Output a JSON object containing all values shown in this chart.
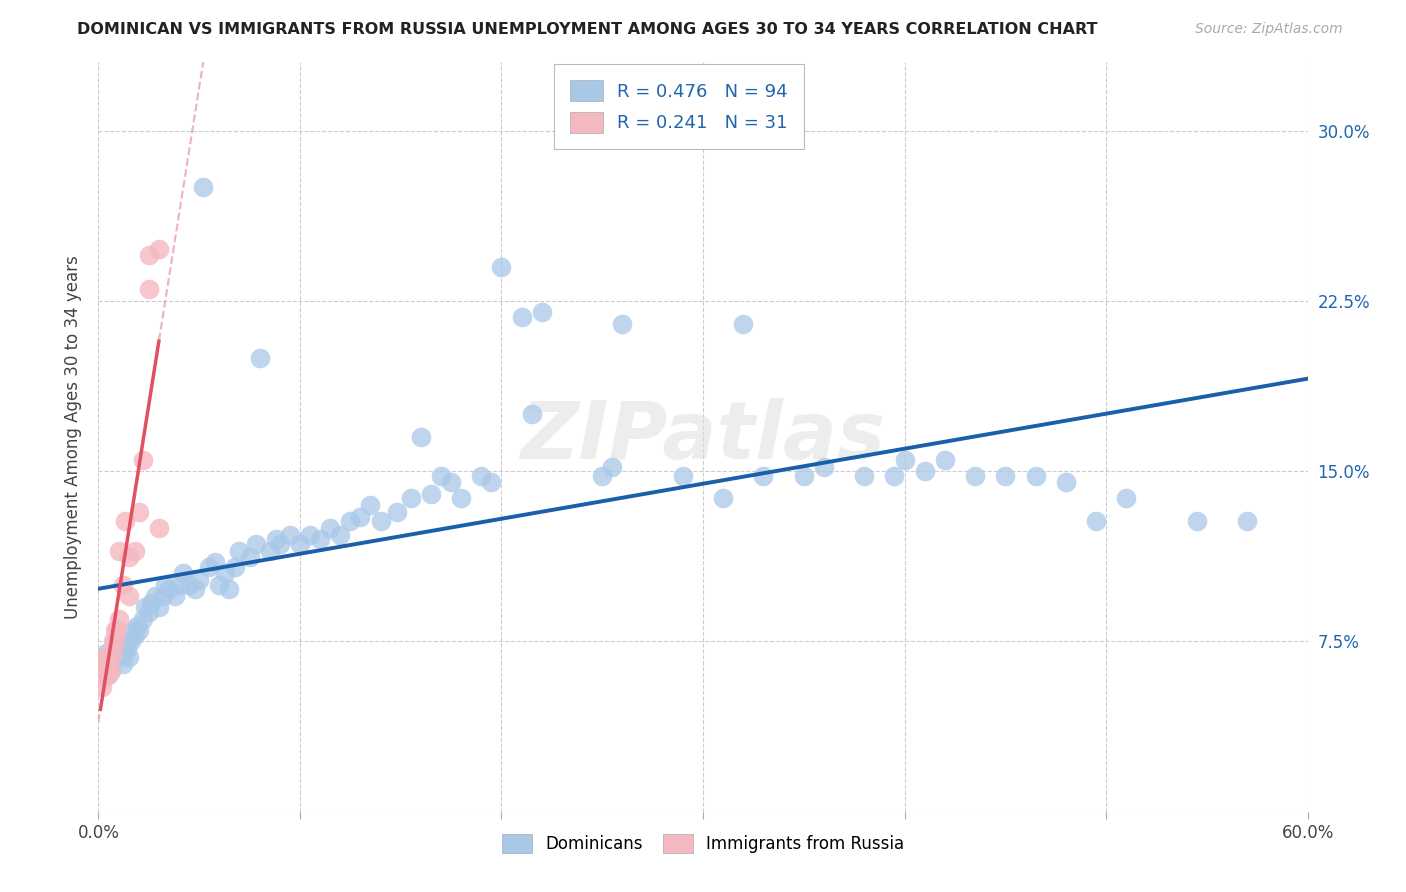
{
  "title": "DOMINICAN VS IMMIGRANTS FROM RUSSIA UNEMPLOYMENT AMONG AGES 30 TO 34 YEARS CORRELATION CHART",
  "source": "Source: ZipAtlas.com",
  "ylabel": "Unemployment Among Ages 30 to 34 years",
  "xlim": [
    0.0,
    0.6
  ],
  "ylim": [
    0.0,
    0.33
  ],
  "xtick_positions": [
    0.0,
    0.1,
    0.2,
    0.3,
    0.4,
    0.5,
    0.6
  ],
  "xticklabels": [
    "0.0%",
    "",
    "",
    "",
    "",
    "",
    "60.0%"
  ],
  "ytick_positions": [
    0.0,
    0.075,
    0.15,
    0.225,
    0.3
  ],
  "yticklabels_right": [
    "",
    "7.5%",
    "15.0%",
    "22.5%",
    "30.0%"
  ],
  "dominicans_R": 0.476,
  "dominicans_N": 94,
  "russia_R": 0.241,
  "russia_N": 31,
  "legend_label1": "Dominicans",
  "legend_label2": "Immigrants from Russia",
  "blue_color": "#a8c8e8",
  "pink_color": "#f4b8c0",
  "blue_line_color": "#1a5fa8",
  "pink_line_color": "#e05060",
  "pink_dash_color": "#e8a0a8",
  "watermark": "ZIPatlas",
  "dominicans_x": [
    0.002,
    0.003,
    0.004,
    0.005,
    0.005,
    0.006,
    0.007,
    0.008,
    0.009,
    0.01,
    0.011,
    0.012,
    0.013,
    0.014,
    0.015,
    0.016,
    0.017,
    0.018,
    0.019,
    0.02,
    0.022,
    0.023,
    0.025,
    0.026,
    0.028,
    0.03,
    0.032,
    0.033,
    0.035,
    0.038,
    0.04,
    0.042,
    0.045,
    0.048,
    0.05,
    0.052,
    0.055,
    0.058,
    0.06,
    0.063,
    0.065,
    0.068,
    0.07,
    0.075,
    0.078,
    0.08,
    0.085,
    0.088,
    0.09,
    0.095,
    0.1,
    0.105,
    0.11,
    0.115,
    0.12,
    0.125,
    0.13,
    0.135,
    0.14,
    0.148,
    0.155,
    0.16,
    0.165,
    0.17,
    0.175,
    0.18,
    0.19,
    0.195,
    0.2,
    0.21,
    0.215,
    0.22,
    0.25,
    0.255,
    0.26,
    0.29,
    0.31,
    0.32,
    0.33,
    0.35,
    0.36,
    0.38,
    0.395,
    0.4,
    0.41,
    0.42,
    0.435,
    0.45,
    0.465,
    0.48,
    0.495,
    0.51,
    0.545,
    0.57
  ],
  "dominicans_y": [
    0.065,
    0.068,
    0.07,
    0.06,
    0.065,
    0.063,
    0.068,
    0.07,
    0.072,
    0.075,
    0.068,
    0.065,
    0.07,
    0.072,
    0.068,
    0.075,
    0.08,
    0.078,
    0.082,
    0.08,
    0.085,
    0.09,
    0.088,
    0.092,
    0.095,
    0.09,
    0.095,
    0.1,
    0.098,
    0.095,
    0.1,
    0.105,
    0.1,
    0.098,
    0.102,
    0.275,
    0.108,
    0.11,
    0.1,
    0.105,
    0.098,
    0.108,
    0.115,
    0.112,
    0.118,
    0.2,
    0.115,
    0.12,
    0.118,
    0.122,
    0.118,
    0.122,
    0.12,
    0.125,
    0.122,
    0.128,
    0.13,
    0.135,
    0.128,
    0.132,
    0.138,
    0.165,
    0.14,
    0.148,
    0.145,
    0.138,
    0.148,
    0.145,
    0.24,
    0.218,
    0.175,
    0.22,
    0.148,
    0.152,
    0.215,
    0.148,
    0.138,
    0.215,
    0.148,
    0.148,
    0.152,
    0.148,
    0.148,
    0.155,
    0.15,
    0.155,
    0.148,
    0.148,
    0.148,
    0.145,
    0.128,
    0.138,
    0.128,
    0.128
  ],
  "russia_x": [
    0.001,
    0.002,
    0.002,
    0.003,
    0.003,
    0.003,
    0.004,
    0.004,
    0.004,
    0.005,
    0.005,
    0.006,
    0.006,
    0.007,
    0.007,
    0.008,
    0.008,
    0.009,
    0.01,
    0.01,
    0.012,
    0.013,
    0.015,
    0.015,
    0.018,
    0.02,
    0.022,
    0.025,
    0.025,
    0.03,
    0.03
  ],
  "russia_y": [
    0.06,
    0.055,
    0.06,
    0.06,
    0.065,
    0.068,
    0.06,
    0.065,
    0.068,
    0.06,
    0.065,
    0.062,
    0.068,
    0.07,
    0.075,
    0.075,
    0.08,
    0.08,
    0.085,
    0.115,
    0.1,
    0.128,
    0.095,
    0.112,
    0.115,
    0.132,
    0.155,
    0.245,
    0.23,
    0.248,
    0.125
  ]
}
